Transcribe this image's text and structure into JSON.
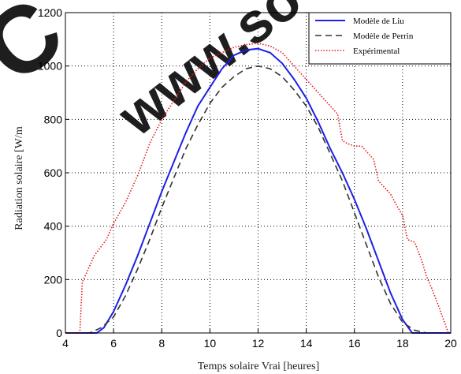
{
  "chart_data": {
    "type": "line",
    "xlabel": "Temps solaire Vrai [heures]",
    "ylabel": "Radiation solaire [W/m",
    "xlim": [
      4,
      20
    ],
    "ylim": [
      0,
      1200
    ],
    "xticks": [
      4,
      6,
      8,
      10,
      12,
      14,
      16,
      18,
      20
    ],
    "yticks": [
      0,
      200,
      400,
      600,
      800,
      1000,
      1200
    ],
    "grid": true,
    "legend_position": "top-right",
    "series": [
      {
        "name": "Modèle de Liu",
        "color": "#1f1fe6",
        "style": "solid",
        "x": [
          4,
          5.3,
          5.6,
          6,
          6.5,
          7,
          7.5,
          8,
          8.5,
          9,
          9.5,
          10,
          10.5,
          11,
          11.5,
          12,
          12.5,
          13,
          13.5,
          14,
          14.5,
          15,
          15.5,
          16,
          16.5,
          17,
          17.5,
          18,
          18.4,
          20
        ],
        "y": [
          0,
          0,
          20,
          80,
          180,
          290,
          410,
          530,
          640,
          750,
          850,
          920,
          990,
          1040,
          1060,
          1065,
          1050,
          1010,
          950,
          880,
          790,
          690,
          600,
          500,
          390,
          270,
          150,
          50,
          0,
          0
        ]
      },
      {
        "name": "Modèle de Perrin",
        "color": "#333333",
        "style": "dashed",
        "x": [
          4,
          5,
          5.5,
          6,
          6.5,
          7,
          7.5,
          8,
          8.5,
          9,
          9.5,
          10,
          10.5,
          11,
          11.5,
          12,
          12.5,
          13,
          13.5,
          14,
          14.5,
          15,
          15.5,
          16,
          16.5,
          17,
          17.5,
          18,
          18.5,
          19
        ],
        "y": [
          0,
          0,
          20,
          60,
          140,
          240,
          350,
          470,
          580,
          690,
          780,
          860,
          920,
          960,
          990,
          1000,
          990,
          960,
          910,
          850,
          770,
          670,
          570,
          450,
          330,
          210,
          110,
          40,
          10,
          0
        ]
      },
      {
        "name": "Expérimental",
        "color": "#e61a1a",
        "style": "dotted",
        "x": [
          4,
          4.6,
          4.7,
          5.2,
          5.7,
          6,
          6.5,
          7,
          7.5,
          8,
          8.5,
          9,
          9.5,
          10,
          10.5,
          11,
          11.5,
          12,
          12.5,
          13,
          13.5,
          14,
          14.5,
          15,
          15.3,
          15.5,
          15.7,
          16,
          16.3,
          16.5,
          16.8,
          17,
          17.3,
          17.5,
          17.8,
          18,
          18.2,
          18.5,
          18.8,
          19,
          19.2,
          19.5,
          19.7,
          19.9
        ],
        "y": [
          0,
          0,
          190,
          290,
          350,
          410,
          490,
          590,
          710,
          800,
          870,
          940,
          990,
          1030,
          1050,
          1070,
          1080,
          1085,
          1075,
          1050,
          1000,
          950,
          900,
          850,
          820,
          720,
          710,
          700,
          700,
          680,
          650,
          570,
          540,
          520,
          470,
          440,
          350,
          340,
          270,
          210,
          170,
          100,
          50,
          0
        ]
      }
    ]
  },
  "watermark": {
    "letters": "C",
    "url": "www.so"
  }
}
